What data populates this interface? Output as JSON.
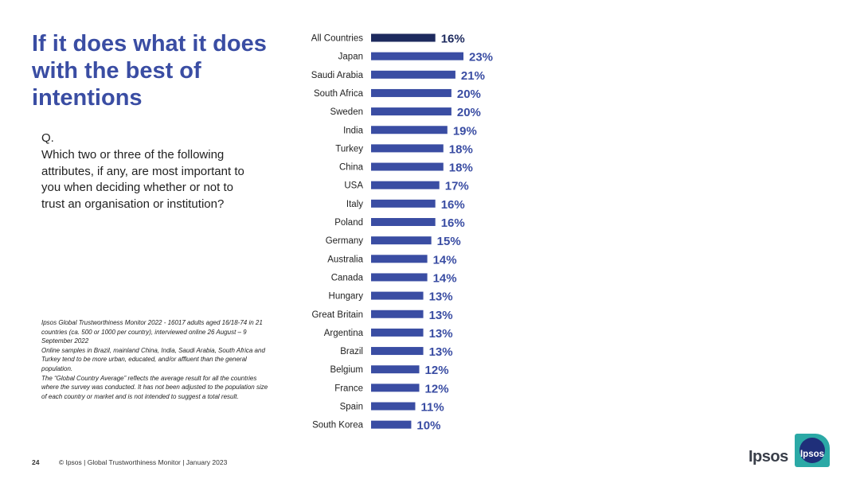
{
  "slide": {
    "title": "If it does what it does with the best of intentions",
    "question_label": "Q.",
    "question_text": "Which two or three of the following attributes, if any, are most important to you when deciding whether or not to trust an organisation or institution?",
    "notes": [
      "Ipsos Global Trustworthiness Monitor 2022 - 16017 adults aged 16/18-74 in 21 countries (ca. 500 or 1000 per country), interviewed online 26 August – 9 September 2022",
      "Online samples in Brazil, mainland China, India, Saudi Arabia, South Africa and Turkey tend to be more urban, educated, and/or affluent than the general population.",
      "The “Global Country Average” reflects the average result for all the countries where the survey was conducted. It has not been adjusted to the population size of each country or market and is not intended to suggest a total result."
    ],
    "page_number": "24",
    "footer_text": "© Ipsos | Global Trustworthiness Monitor | January 2023"
  },
  "brand": {
    "wordmark": "Ipsos",
    "logo_text": "Ipsos"
  },
  "colors": {
    "title": "#3a4da3",
    "bar": "#3a4da3",
    "bar_highlight": "#1d2a5e",
    "value_label": "#3a4da3",
    "value_label_highlight": "#1d2a5e",
    "logo_teal": "#2ba9a6",
    "logo_navy": "#1f2f7a"
  },
  "chart_data": {
    "type": "bar",
    "orientation": "horizontal",
    "categories": [
      "All Countries",
      "Japan",
      "Saudi Arabia",
      "South Africa",
      "Sweden",
      "India",
      "Turkey",
      "China",
      "USA",
      "Italy",
      "Poland",
      "Germany",
      "Australia",
      "Canada",
      "Hungary",
      "Great Britain",
      "Argentina",
      "Brazil",
      "Belgium",
      "France",
      "Spain",
      "South Korea"
    ],
    "values": [
      16,
      23,
      21,
      20,
      20,
      19,
      18,
      18,
      17,
      16,
      16,
      15,
      14,
      14,
      13,
      13,
      13,
      13,
      12,
      12,
      11,
      10
    ],
    "value_format": "{v}%",
    "highlight": "All Countries",
    "title": "",
    "xlabel": "",
    "ylabel": "",
    "xlim": [
      0,
      23
    ],
    "grid": false,
    "legend": "none"
  }
}
